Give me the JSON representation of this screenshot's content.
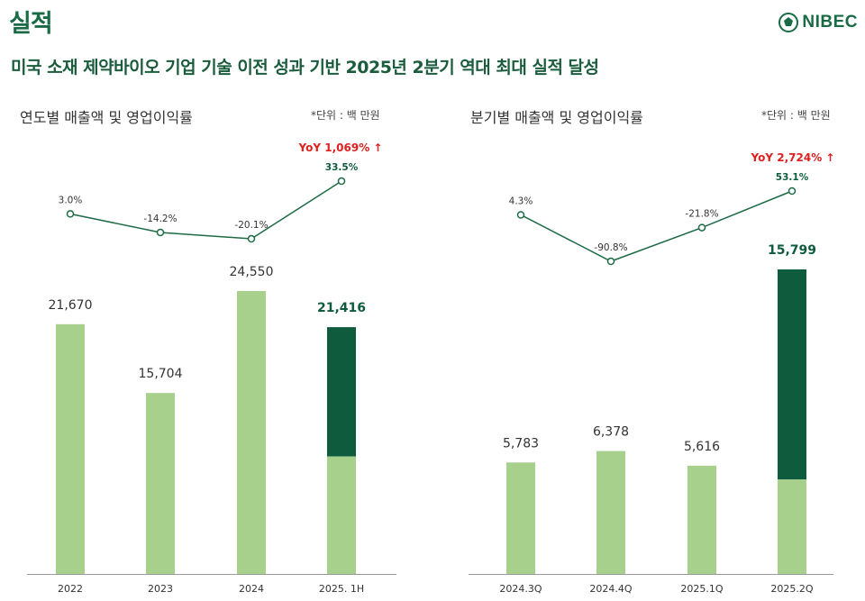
{
  "page_title": "실적",
  "logo": {
    "text": "NIBEC",
    "icon": "nibec-logo-icon"
  },
  "headline": "미국 소재 제약바이오 기업 기술 이전 성과 기반 2025년 2분기 역대 최대 실적 달성",
  "colors": {
    "bar_light": "#a8d08d",
    "bar_dark": "#0e5c3d",
    "line": "#1e6b45",
    "yoy": "#e02020",
    "axis": "#999999"
  },
  "chart_data": [
    {
      "type": "bar+line",
      "title": "연도별 매출액 및 영업이익률",
      "unit_note": "*단위 : 백 만원",
      "categories": [
        "2022",
        "2023",
        "2024",
        "2025. 1H"
      ],
      "bar_values": [
        21670,
        15704,
        24550,
        21416
      ],
      "bar_labels": [
        "21,670",
        "15,704",
        "24,550",
        "21,416"
      ],
      "highlight_index": 3,
      "highlight_split_value": 10200,
      "line_values": [
        3.0,
        -14.2,
        -20.1,
        33.5
      ],
      "line_labels": [
        "3.0%",
        "-14.2%",
        "-20.1%",
        "33.5%"
      ],
      "yoy_note": "YoY 1,069% ↑"
    },
    {
      "type": "bar+line",
      "title": "분기별 매출액 및 영업이익률",
      "unit_note": "*단위 : 백 만원",
      "categories": [
        "2024.3Q",
        "2024.4Q",
        "2025.1Q",
        "2025.2Q"
      ],
      "bar_values": [
        5783,
        6378,
        5616,
        15799
      ],
      "bar_labels": [
        "5,783",
        "6,378",
        "5,616",
        "15,799"
      ],
      "highlight_index": 3,
      "highlight_split_value": 4900,
      "line_values": [
        4.3,
        -90.8,
        -21.8,
        53.1
      ],
      "line_labels": [
        "4.3%",
        "-90.8%",
        "-21.8%",
        "53.1%"
      ],
      "yoy_note": "YoY 2,724% ↑"
    }
  ]
}
